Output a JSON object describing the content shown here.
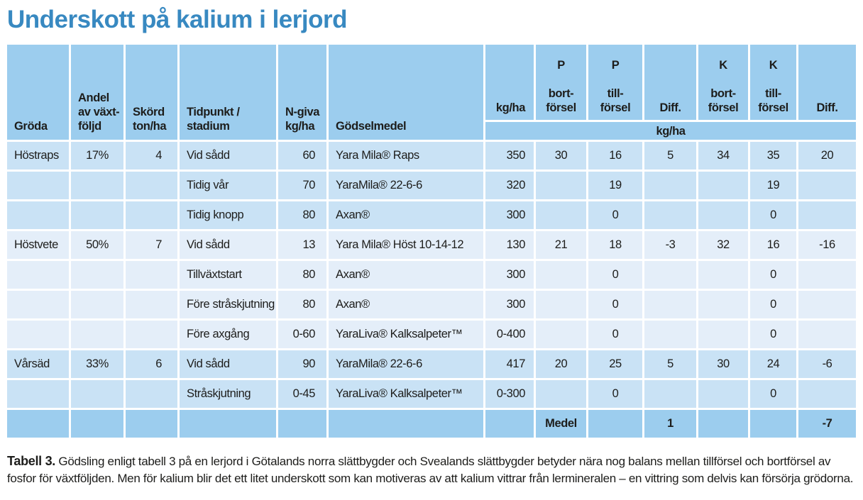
{
  "page_title": "Underskott på kalium i lerjord",
  "colors": {
    "title_blue": "#3889c1",
    "header_bg": "#9ccdee",
    "group_light_blue_bg": "#c9e2f5",
    "group_pale_blue_bg": "#e4eef9",
    "total_row_bg": "#9ccdee",
    "gridline": "#ffffff",
    "text": "#1d1d1b"
  },
  "table": {
    "headers": [
      "Gröda",
      "Andel\nav växt-\nföljd",
      "Skörd\nton/ha",
      "Tidpunkt /\nstadium",
      "N-giva\nkg/ha",
      "Gödselmedel",
      "kg/ha",
      "P\n\nbort-\nförsel",
      "P\n\ntill-\nförsel",
      "Diff.",
      "K\n\nbort-\nförsel",
      "K\n\ntill-\nförsel",
      "Diff."
    ],
    "subheader": "kg/ha",
    "rows": [
      {
        "group": "a",
        "bold": false,
        "cells": [
          "Höstraps",
          "17%",
          "4",
          "Vid sådd",
          "60",
          "Yara Mila® Raps",
          "350",
          "30",
          "16",
          "5",
          "34",
          "35",
          "20"
        ]
      },
      {
        "group": "a",
        "bold": false,
        "cells": [
          "",
          "",
          "",
          "Tidig vår",
          "70",
          "YaraMila® 22-6-6",
          "320",
          "",
          "19",
          "",
          "",
          "19",
          ""
        ]
      },
      {
        "group": "a",
        "bold": false,
        "cells": [
          "",
          "",
          "",
          "Tidig knopp",
          "80",
          "Axan®",
          "300",
          "",
          "0",
          "",
          "",
          "0",
          ""
        ]
      },
      {
        "group": "b",
        "bold": false,
        "cells": [
          "Höstvete",
          "50%",
          "7",
          "Vid sådd",
          "13",
          "Yara Mila® Höst 10-14-12",
          "130",
          "21",
          "18",
          "-3",
          "32",
          "16",
          "-16"
        ]
      },
      {
        "group": "b",
        "bold": false,
        "cells": [
          "",
          "",
          "",
          "Tillväxtstart",
          "80",
          "Axan®",
          "300",
          "",
          "0",
          "",
          "",
          "0",
          ""
        ]
      },
      {
        "group": "b",
        "bold": false,
        "cells": [
          "",
          "",
          "",
          "Före stråskjutning",
          "80",
          "Axan®",
          "300",
          "",
          "0",
          "",
          "",
          "0",
          ""
        ]
      },
      {
        "group": "b",
        "bold": false,
        "cells": [
          "",
          "",
          "",
          "Före axgång",
          "0-60",
          "YaraLiva® Kalksalpeter™",
          "0-400",
          "",
          "0",
          "",
          "",
          "0",
          ""
        ]
      },
      {
        "group": "a",
        "bold": false,
        "cells": [
          "Vårsäd",
          "33%",
          "6",
          "Vid sådd",
          "90",
          "YaraMila® 22-6-6",
          "417",
          "20",
          "25",
          "5",
          "30",
          "24",
          "-6"
        ]
      },
      {
        "group": "a",
        "bold": false,
        "cells": [
          "",
          "",
          "",
          "Stråskjutning",
          "0-45",
          "YaraLiva® Kalksalpeter™",
          "0-300",
          "",
          "0",
          "",
          "",
          "0",
          ""
        ]
      },
      {
        "group": "total",
        "bold": true,
        "cells": [
          "",
          "",
          "",
          "",
          "",
          "",
          "",
          "Medel",
          "",
          "1",
          "",
          "",
          "-7"
        ]
      }
    ]
  },
  "caption": {
    "label": "Tabell 3.",
    "text": " Gödsling enligt tabell 3 på en lerjord i Götalands norra slättbygder och Svealands slättbygder betyder nära nog balans mellan tillförsel och bortförsel av fosfor för växtföljden. Men för kalium blir det ett litet underskott som kan motiveras av att kalium vittrar från lermineralen – en vittring som delvis kan försörja grödorna."
  }
}
